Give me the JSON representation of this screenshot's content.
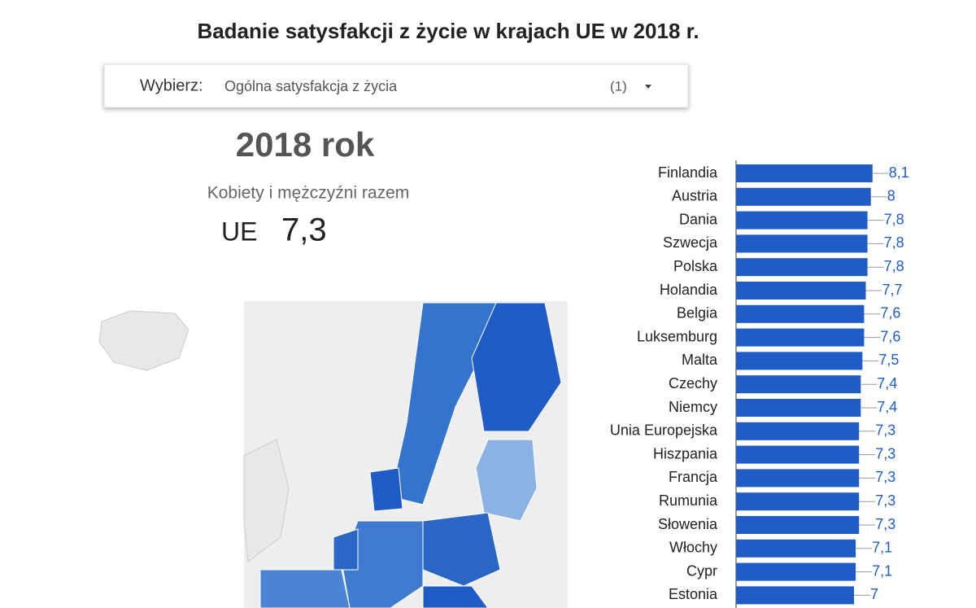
{
  "header": {
    "title": "Badanie satysfakcji z życie w krajach UE w 2018 r."
  },
  "selector": {
    "label": "Wybierz:",
    "value": "Ogólna satysfakcja z życia",
    "count": "(1)"
  },
  "summary": {
    "year": "2018 rok",
    "subtitle": "Kobiety i mężczyźni razem",
    "region": "UE",
    "value": "7,3"
  },
  "chart_data": {
    "type": "bar",
    "orientation": "horizontal",
    "categories": [
      "Finlandia",
      "Austria",
      "Dania",
      "Szwecja",
      "Polska",
      "Holandia",
      "Belgia",
      "Luksemburg",
      "Malta",
      "Czechy",
      "Niemcy",
      "Unia Europejska",
      "Hiszpania",
      "Francja",
      "Rumunia",
      "Słowenia",
      "Włochy",
      "Cypr",
      "Estonia"
    ],
    "values": [
      8.1,
      8,
      7.8,
      7.8,
      7.8,
      7.7,
      7.6,
      7.6,
      7.5,
      7.4,
      7.4,
      7.3,
      7.3,
      7.3,
      7.3,
      7.3,
      7.1,
      7.1,
      7
    ],
    "value_labels": [
      "8,1",
      "8",
      "7,8",
      "7,8",
      "7,8",
      "7,7",
      "7,6",
      "7,6",
      "7,5",
      "7,4",
      "7,4",
      "7,3",
      "7,3",
      "7,3",
      "7,3",
      "7,3",
      "7,1",
      "7,1",
      "7"
    ],
    "color": "#1f5cc8",
    "xlim": [
      0,
      14
    ]
  }
}
